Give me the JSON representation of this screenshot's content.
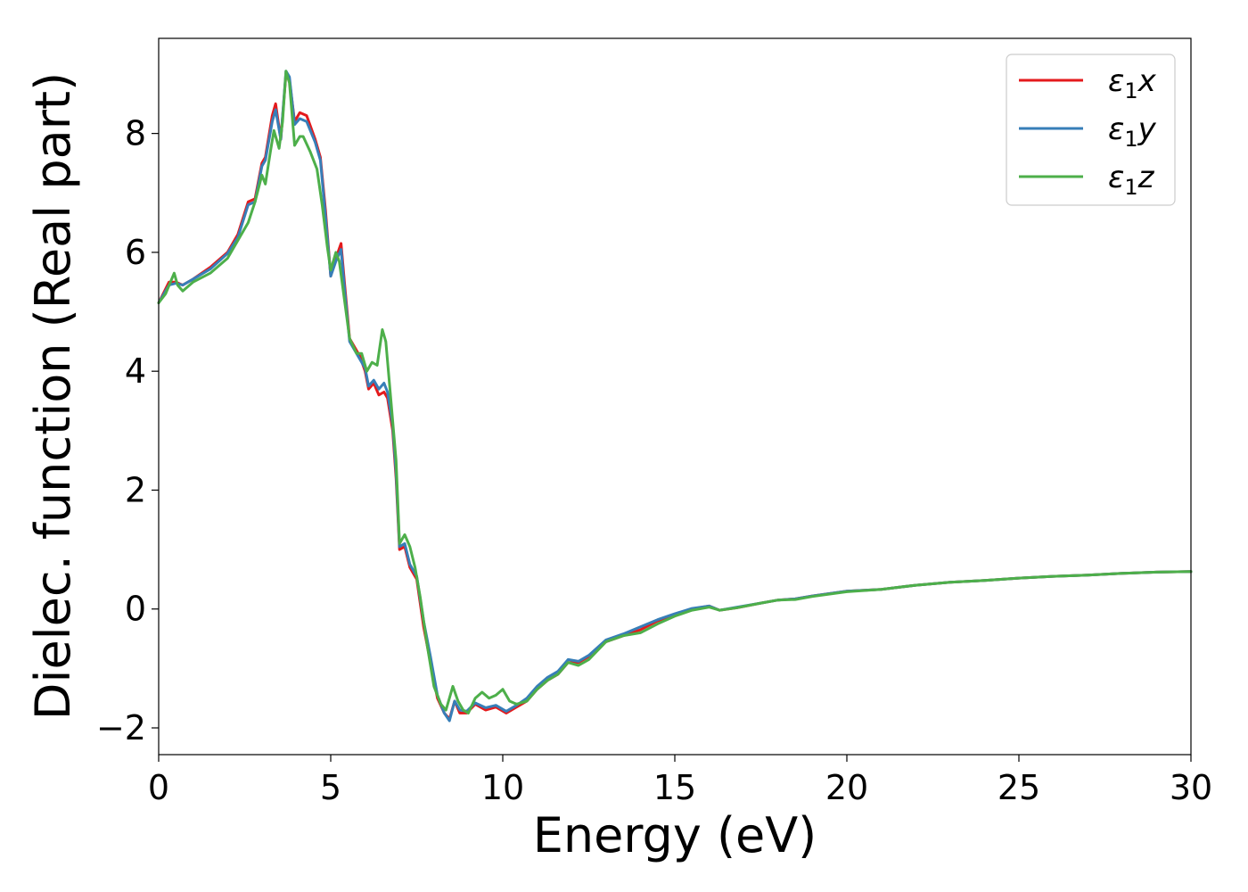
{
  "chart_data": {
    "type": "line",
    "title": "",
    "xlabel": "Energy (eV)",
    "ylabel": "Dielec. function (Real part)",
    "xlim": [
      0,
      30
    ],
    "ylim": [
      -2.45,
      9.6
    ],
    "xticks": [
      0,
      5,
      10,
      15,
      20,
      25,
      30
    ],
    "xtick_labels": [
      "0",
      "5",
      "10",
      "15",
      "20",
      "25",
      "30"
    ],
    "yticks": [
      -2,
      0,
      2,
      4,
      6,
      8
    ],
    "ytick_labels": [
      "−2",
      "0",
      "2",
      "4",
      "6",
      "8"
    ],
    "grid": false,
    "legend_position": "top-right",
    "series": [
      {
        "name": "ε₁x",
        "symbol": "ε",
        "subscript": "1",
        "axis": "x",
        "color": "#e41a1c",
        "points": [
          [
            0,
            5.15
          ],
          [
            0.3,
            5.5
          ],
          [
            0.5,
            5.5
          ],
          [
            0.7,
            5.45
          ],
          [
            1,
            5.55
          ],
          [
            1.5,
            5.75
          ],
          [
            2,
            6
          ],
          [
            2.3,
            6.3
          ],
          [
            2.6,
            6.85
          ],
          [
            2.8,
            6.9
          ],
          [
            3,
            7.5
          ],
          [
            3.1,
            7.6
          ],
          [
            3.3,
            8.3
          ],
          [
            3.4,
            8.5
          ],
          [
            3.55,
            7.9
          ],
          [
            3.7,
            9.0
          ],
          [
            3.8,
            8.9
          ],
          [
            3.95,
            8.2
          ],
          [
            4.1,
            8.35
          ],
          [
            4.3,
            8.3
          ],
          [
            4.55,
            7.9
          ],
          [
            4.7,
            7.6
          ],
          [
            4.85,
            6.7
          ],
          [
            5.0,
            5.6
          ],
          [
            5.15,
            5.9
          ],
          [
            5.3,
            6.15
          ],
          [
            5.4,
            5.5
          ],
          [
            5.55,
            4.55
          ],
          [
            5.7,
            4.4
          ],
          [
            5.85,
            4.25
          ],
          [
            6.0,
            4.0
          ],
          [
            6.1,
            3.7
          ],
          [
            6.25,
            3.8
          ],
          [
            6.4,
            3.6
          ],
          [
            6.55,
            3.65
          ],
          [
            6.65,
            3.55
          ],
          [
            6.8,
            3.0
          ],
          [
            6.9,
            2.2
          ],
          [
            7.0,
            1.0
          ],
          [
            7.15,
            1.05
          ],
          [
            7.3,
            0.7
          ],
          [
            7.5,
            0.5
          ],
          [
            7.7,
            -0.3
          ],
          [
            7.9,
            -0.9
          ],
          [
            8.1,
            -1.5
          ],
          [
            8.3,
            -1.75
          ],
          [
            8.45,
            -1.85
          ],
          [
            8.6,
            -1.55
          ],
          [
            8.75,
            -1.75
          ],
          [
            8.95,
            -1.75
          ],
          [
            9.2,
            -1.6
          ],
          [
            9.5,
            -1.7
          ],
          [
            9.8,
            -1.65
          ],
          [
            10.1,
            -1.75
          ],
          [
            10.4,
            -1.65
          ],
          [
            10.7,
            -1.55
          ],
          [
            11,
            -1.35
          ],
          [
            11.3,
            -1.2
          ],
          [
            11.6,
            -1.1
          ],
          [
            11.9,
            -0.9
          ],
          [
            12.2,
            -0.9
          ],
          [
            12.5,
            -0.8
          ],
          [
            13,
            -0.55
          ],
          [
            13.5,
            -0.45
          ],
          [
            14,
            -0.35
          ],
          [
            14.5,
            -0.2
          ],
          [
            15,
            -0.1
          ],
          [
            15.5,
            0.0
          ],
          [
            16,
            0.05
          ],
          [
            16.3,
            -0.02
          ],
          [
            16.8,
            0.02
          ],
          [
            17.5,
            0.1
          ],
          [
            18,
            0.15
          ],
          [
            18.5,
            0.17
          ],
          [
            19,
            0.22
          ],
          [
            20,
            0.3
          ],
          [
            21,
            0.33
          ],
          [
            22,
            0.4
          ],
          [
            23,
            0.45
          ],
          [
            24,
            0.48
          ],
          [
            25,
            0.52
          ],
          [
            26,
            0.55
          ],
          [
            27,
            0.57
          ],
          [
            28,
            0.6
          ],
          [
            29,
            0.62
          ],
          [
            30,
            0.63
          ]
        ]
      },
      {
        "name": "ε₁y",
        "symbol": "ε",
        "subscript": "1",
        "axis": "y",
        "color": "#377eb8",
        "points": [
          [
            0,
            5.15
          ],
          [
            0.3,
            5.45
          ],
          [
            0.5,
            5.48
          ],
          [
            0.7,
            5.45
          ],
          [
            1,
            5.55
          ],
          [
            1.5,
            5.72
          ],
          [
            2,
            5.98
          ],
          [
            2.3,
            6.25
          ],
          [
            2.6,
            6.8
          ],
          [
            2.8,
            6.85
          ],
          [
            3,
            7.45
          ],
          [
            3.1,
            7.55
          ],
          [
            3.3,
            8.2
          ],
          [
            3.4,
            8.4
          ],
          [
            3.55,
            7.9
          ],
          [
            3.7,
            9.05
          ],
          [
            3.8,
            8.95
          ],
          [
            3.95,
            8.15
          ],
          [
            4.1,
            8.25
          ],
          [
            4.3,
            8.2
          ],
          [
            4.55,
            7.85
          ],
          [
            4.7,
            7.55
          ],
          [
            4.85,
            6.6
          ],
          [
            5.0,
            5.6
          ],
          [
            5.15,
            5.85
          ],
          [
            5.3,
            6.05
          ],
          [
            5.4,
            5.4
          ],
          [
            5.55,
            4.5
          ],
          [
            5.7,
            4.35
          ],
          [
            5.85,
            4.2
          ],
          [
            6.0,
            4.05
          ],
          [
            6.1,
            3.75
          ],
          [
            6.25,
            3.85
          ],
          [
            6.4,
            3.7
          ],
          [
            6.55,
            3.8
          ],
          [
            6.65,
            3.65
          ],
          [
            6.8,
            3.1
          ],
          [
            6.9,
            2.3
          ],
          [
            7.0,
            1.05
          ],
          [
            7.15,
            1.1
          ],
          [
            7.3,
            0.75
          ],
          [
            7.5,
            0.55
          ],
          [
            7.7,
            -0.2
          ],
          [
            7.9,
            -0.8
          ],
          [
            8.1,
            -1.45
          ],
          [
            8.3,
            -1.75
          ],
          [
            8.45,
            -1.88
          ],
          [
            8.6,
            -1.55
          ],
          [
            8.75,
            -1.7
          ],
          [
            8.95,
            -1.72
          ],
          [
            9.2,
            -1.58
          ],
          [
            9.5,
            -1.66
          ],
          [
            9.8,
            -1.62
          ],
          [
            10.1,
            -1.72
          ],
          [
            10.4,
            -1.62
          ],
          [
            10.7,
            -1.5
          ],
          [
            11,
            -1.3
          ],
          [
            11.3,
            -1.15
          ],
          [
            11.6,
            -1.05
          ],
          [
            11.9,
            -0.85
          ],
          [
            12.2,
            -0.88
          ],
          [
            12.5,
            -0.78
          ],
          [
            13,
            -0.52
          ],
          [
            13.5,
            -0.42
          ],
          [
            14,
            -0.3
          ],
          [
            14.5,
            -0.18
          ],
          [
            15,
            -0.08
          ],
          [
            15.5,
            0.01
          ],
          [
            16,
            0.05
          ],
          [
            16.3,
            -0.02
          ],
          [
            16.8,
            0.03
          ],
          [
            17.5,
            0.1
          ],
          [
            18,
            0.15
          ],
          [
            18.5,
            0.17
          ],
          [
            19,
            0.22
          ],
          [
            20,
            0.3
          ],
          [
            21,
            0.33
          ],
          [
            22,
            0.4
          ],
          [
            23,
            0.45
          ],
          [
            24,
            0.48
          ],
          [
            25,
            0.52
          ],
          [
            26,
            0.55
          ],
          [
            27,
            0.57
          ],
          [
            28,
            0.6
          ],
          [
            29,
            0.62
          ],
          [
            30,
            0.63
          ]
        ]
      },
      {
        "name": "ε₁z",
        "symbol": "ε",
        "subscript": "1",
        "axis": "z",
        "color": "#4daf4a",
        "points": [
          [
            0,
            5.15
          ],
          [
            0.2,
            5.3
          ],
          [
            0.45,
            5.65
          ],
          [
            0.55,
            5.45
          ],
          [
            0.7,
            5.35
          ],
          [
            1,
            5.5
          ],
          [
            1.5,
            5.65
          ],
          [
            2,
            5.9
          ],
          [
            2.3,
            6.2
          ],
          [
            2.6,
            6.5
          ],
          [
            2.8,
            6.85
          ],
          [
            3.0,
            7.3
          ],
          [
            3.1,
            7.15
          ],
          [
            3.25,
            7.7
          ],
          [
            3.35,
            8.05
          ],
          [
            3.5,
            7.75
          ],
          [
            3.6,
            8.2
          ],
          [
            3.7,
            9.05
          ],
          [
            3.8,
            8.85
          ],
          [
            3.95,
            7.8
          ],
          [
            4.1,
            7.95
          ],
          [
            4.2,
            7.95
          ],
          [
            4.4,
            7.7
          ],
          [
            4.6,
            7.4
          ],
          [
            4.75,
            6.8
          ],
          [
            4.9,
            6.1
          ],
          [
            5.0,
            5.7
          ],
          [
            5.15,
            6.0
          ],
          [
            5.25,
            5.85
          ],
          [
            5.4,
            5.2
          ],
          [
            5.55,
            4.55
          ],
          [
            5.75,
            4.3
          ],
          [
            5.9,
            4.3
          ],
          [
            6.05,
            4.0
          ],
          [
            6.2,
            4.15
          ],
          [
            6.35,
            4.1
          ],
          [
            6.5,
            4.7
          ],
          [
            6.6,
            4.5
          ],
          [
            6.75,
            3.5
          ],
          [
            6.9,
            2.5
          ],
          [
            7.0,
            1.1
          ],
          [
            7.15,
            1.25
          ],
          [
            7.3,
            1.05
          ],
          [
            7.45,
            0.7
          ],
          [
            7.6,
            0.2
          ],
          [
            7.8,
            -0.6
          ],
          [
            8.0,
            -1.3
          ],
          [
            8.2,
            -1.6
          ],
          [
            8.35,
            -1.7
          ],
          [
            8.55,
            -1.3
          ],
          [
            8.7,
            -1.55
          ],
          [
            8.85,
            -1.7
          ],
          [
            9.0,
            -1.75
          ],
          [
            9.2,
            -1.5
          ],
          [
            9.4,
            -1.4
          ],
          [
            9.6,
            -1.5
          ],
          [
            9.8,
            -1.45
          ],
          [
            10.0,
            -1.35
          ],
          [
            10.2,
            -1.55
          ],
          [
            10.4,
            -1.6
          ],
          [
            10.7,
            -1.55
          ],
          [
            11,
            -1.35
          ],
          [
            11.3,
            -1.2
          ],
          [
            11.6,
            -1.1
          ],
          [
            11.9,
            -0.9
          ],
          [
            12.2,
            -0.95
          ],
          [
            12.5,
            -0.85
          ],
          [
            13,
            -0.55
          ],
          [
            13.5,
            -0.45
          ],
          [
            14,
            -0.4
          ],
          [
            14.5,
            -0.25
          ],
          [
            15,
            -0.12
          ],
          [
            15.5,
            -0.02
          ],
          [
            16,
            0.03
          ],
          [
            16.3,
            -0.02
          ],
          [
            16.8,
            0.02
          ],
          [
            17.5,
            0.1
          ],
          [
            18,
            0.15
          ],
          [
            18.5,
            0.16
          ],
          [
            19,
            0.21
          ],
          [
            20,
            0.29
          ],
          [
            21,
            0.33
          ],
          [
            22,
            0.4
          ],
          [
            23,
            0.45
          ],
          [
            24,
            0.48
          ],
          [
            25,
            0.52
          ],
          [
            26,
            0.55
          ],
          [
            27,
            0.57
          ],
          [
            28,
            0.6
          ],
          [
            29,
            0.62
          ],
          [
            30,
            0.63
          ]
        ]
      }
    ]
  }
}
